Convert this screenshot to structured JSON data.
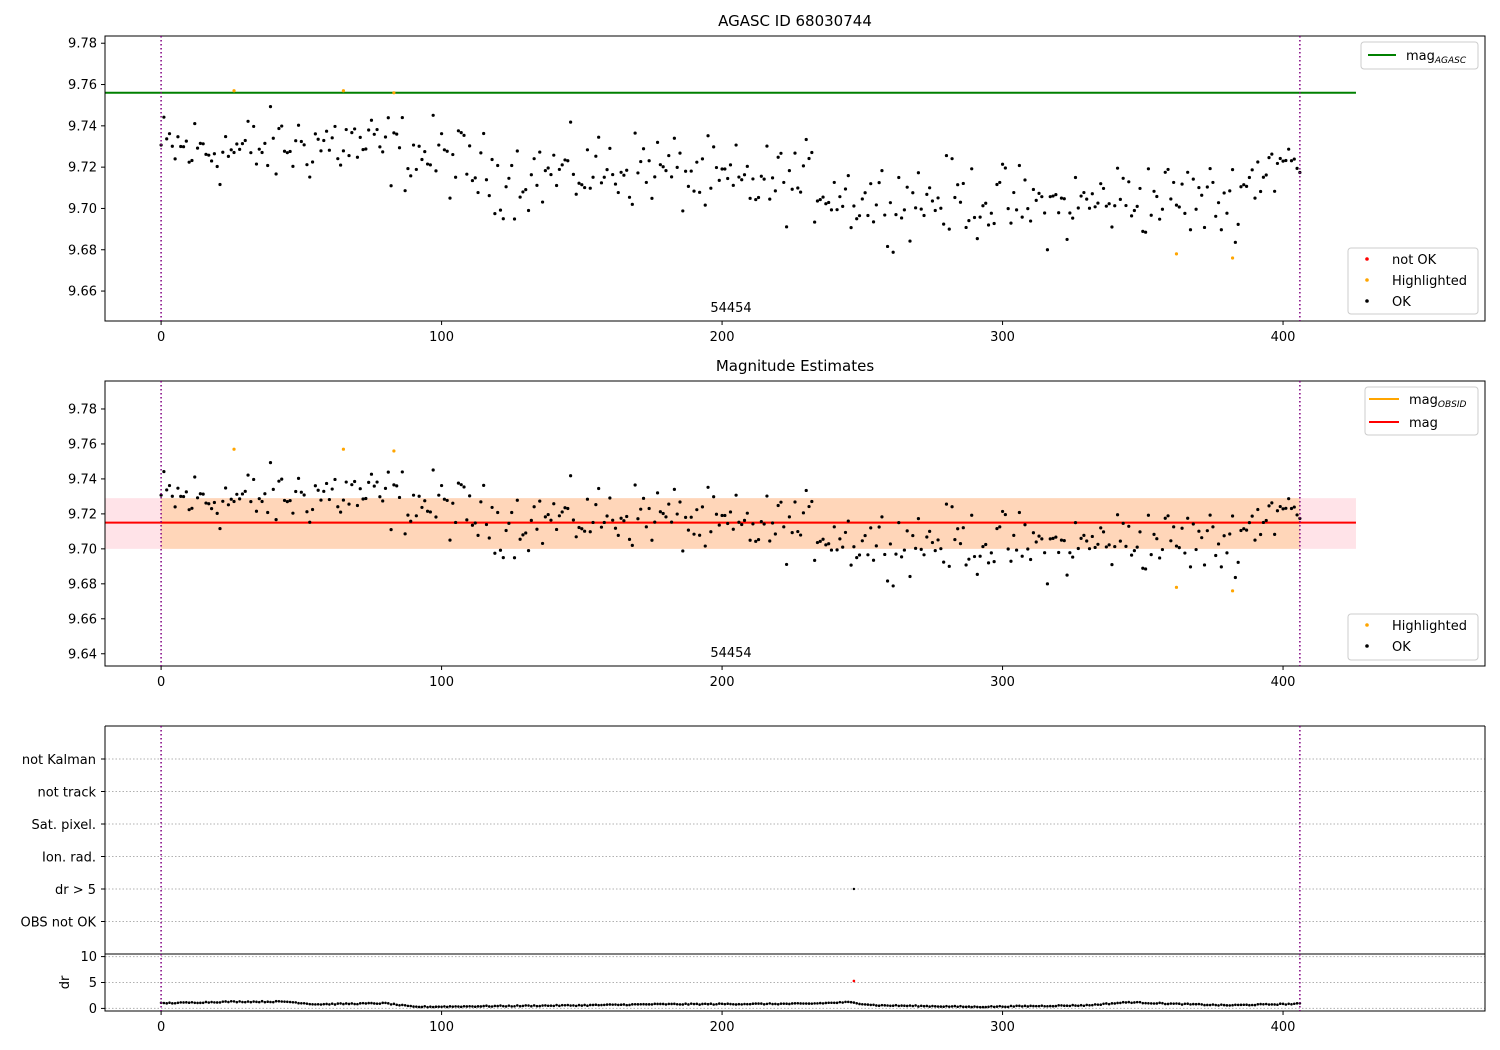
{
  "chart_data": [
    {
      "type": "scatter",
      "title": "AGASC ID 68030744",
      "annotation": "54454",
      "xlabel": "",
      "ylabel": "",
      "xlim": [
        -20,
        472
      ],
      "ylim": [
        9.6455,
        9.7835
      ],
      "xticks": [
        0,
        100,
        200,
        300,
        400
      ],
      "yticks": [
        9.66,
        9.68,
        9.7,
        9.72,
        9.74,
        9.76,
        9.78
      ],
      "obs_boundaries": [
        0,
        406
      ],
      "reference_lines": [
        {
          "label_main": "mag",
          "label_sub": "AGASC",
          "y": 9.756,
          "x_range": [
            -20,
            426
          ],
          "color": "#008000"
        }
      ],
      "series": [
        {
          "name": "not OK",
          "color": "#ff0000",
          "x": [],
          "y": []
        },
        {
          "name": "Highlighted",
          "color": "#ffa500",
          "x": [
            26,
            65,
            83,
            362,
            382
          ],
          "y": [
            9.757,
            9.757,
            9.756,
            9.678,
            9.676
          ]
        },
        {
          "name": "OK",
          "color": "#000000",
          "trend": {
            "x": [
              0,
              30,
              60,
              100,
              120,
              150,
              175,
              200,
              230,
              250,
              280,
              300,
              320,
              340,
              360,
              380,
              395,
              406
            ],
            "y": [
              9.729,
              9.728,
              9.732,
              9.725,
              9.715,
              9.718,
              9.72,
              9.712,
              9.713,
              9.704,
              9.705,
              9.703,
              9.7,
              9.705,
              9.705,
              9.703,
              9.722,
              9.72
            ]
          },
          "count": 406,
          "scatter": 0.01
        }
      ],
      "legend": {
        "position": "lower-right",
        "entries": [
          "not OK",
          "Highlighted",
          "OK"
        ]
      },
      "legend_top": {
        "position": "upper-right",
        "entries": [
          "mag_AGASC"
        ]
      },
      "grid": false
    },
    {
      "type": "scatter",
      "title": "Magnitude Estimates",
      "annotation": "54454",
      "xlabel": "",
      "ylabel": "",
      "xlim": [
        -20,
        472
      ],
      "ylim": [
        9.633,
        9.796
      ],
      "xticks": [
        0,
        100,
        200,
        300,
        400
      ],
      "yticks": [
        9.64,
        9.66,
        9.68,
        9.7,
        9.72,
        9.74,
        9.76,
        9.78
      ],
      "obs_boundaries": [
        0,
        406
      ],
      "reference_lines": [
        {
          "label_main": "mag",
          "label_sub": "OBSID",
          "y": 9.715,
          "x_range": [
            0,
            406
          ],
          "color": "#ffa500",
          "band": [
            9.7,
            9.729
          ]
        },
        {
          "label_main": "mag",
          "label_sub": "",
          "y": 9.715,
          "x_range": [
            -20,
            426
          ],
          "color": "#ff0000",
          "band": [
            9.7,
            9.729
          ]
        }
      ],
      "series": [
        {
          "name": "Highlighted",
          "color": "#ffa500",
          "x": [
            26,
            65,
            83,
            362,
            382
          ],
          "y": [
            9.757,
            9.757,
            9.756,
            9.678,
            9.676
          ]
        },
        {
          "name": "OK",
          "color": "#000000",
          "same_as_panel": 0
        }
      ],
      "legend": {
        "position": "lower-right",
        "entries": [
          "Highlighted",
          "OK"
        ]
      },
      "legend_top": {
        "position": "upper-right",
        "entries": [
          "mag_OBSID",
          "mag"
        ]
      },
      "grid": false
    },
    {
      "type": "scatter",
      "title": "",
      "xlim": [
        -20,
        472
      ],
      "categories": [
        "not Kalman",
        "not track",
        "Sat. pixel.",
        "Ion. rad.",
        "dr > 5",
        "OBS not OK"
      ],
      "flag_points": [
        {
          "category": "dr > 5",
          "x": 247
        }
      ],
      "obs_boundaries": [
        0,
        406
      ],
      "grid": true
    },
    {
      "type": "scatter",
      "title": "",
      "ylabel": "dr",
      "xlim": [
        -20,
        472
      ],
      "ylim": [
        -0.5,
        10.5
      ],
      "yticks": [
        0,
        5,
        10
      ],
      "xticks": [
        0,
        100,
        200,
        300,
        400
      ],
      "obs_boundaries": [
        0,
        406
      ],
      "series": [
        {
          "name": "dr",
          "color": "#000000",
          "count": 406,
          "trend": {
            "x": [
              0,
              25,
              45,
              55,
              80,
              90,
              150,
              175,
              230,
              245,
              255,
              290,
              330,
              345,
              360,
              380,
              406
            ],
            "y": [
              1.0,
              1.3,
              1.3,
              0.8,
              1.0,
              0.3,
              0.6,
              0.8,
              0.9,
              1.2,
              0.6,
              0.3,
              0.6,
              1.2,
              0.9,
              0.6,
              0.9
            ]
          }
        },
        {
          "name": "dr > 5",
          "color": "#ff0000",
          "x": [
            247
          ],
          "y": [
            5.3
          ]
        }
      ],
      "grid": true
    }
  ]
}
